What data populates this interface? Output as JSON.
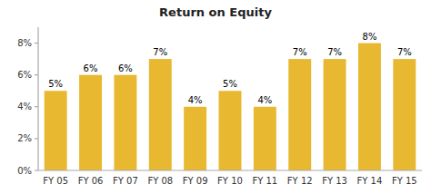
{
  "chart_data": {
    "type": "bar",
    "title": "Return on Equity",
    "categories": [
      "FY 05",
      "FY 06",
      "FY 07",
      "FY 08",
      "FY 09",
      "FY 10",
      "FY 11",
      "FY 12",
      "FY 13",
      "FY 14",
      "FY 15"
    ],
    "values": [
      5,
      6,
      6,
      7,
      4,
      5,
      4,
      7,
      7,
      8,
      7
    ],
    "value_labels": [
      "5%",
      "6%",
      "6%",
      "7%",
      "4%",
      "5%",
      "4%",
      "7%",
      "7%",
      "8%",
      "7%"
    ],
    "color": "#E8B830",
    "ylim": [
      0,
      9
    ],
    "yticks": [
      {
        "value": 0,
        "label": "0%"
      },
      {
        "value": 2,
        "label": "2%"
      },
      {
        "value": 4,
        "label": "4%"
      },
      {
        "value": 6,
        "label": "6%"
      },
      {
        "value": 8,
        "label": "8%"
      }
    ],
    "grid": false,
    "data_labels": true
  }
}
